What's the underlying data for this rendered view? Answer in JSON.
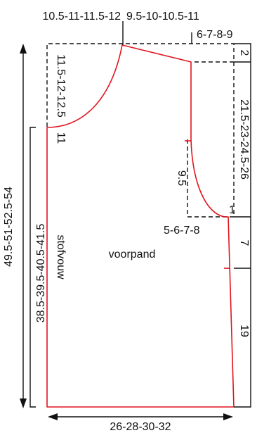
{
  "diagram": {
    "colors": {
      "pattern_line": "#e0141e",
      "guide_line": "#111111"
    },
    "labels": {
      "shoulder_top_left": "10.5-11-11.5-12",
      "shoulder_top_right": "9.5-10-10.5-11",
      "neck_width": "6-7-8-9",
      "shoulder_drop_right": "2",
      "armhole_depth_side": "21.5-23-24.5-26",
      "shoulder_drop_left": "11.5-12-12.5",
      "neck_drop_left": "11",
      "armhole_curve_depth": "9.5",
      "armhole_inset": "5-6-7-8",
      "armhole_corner": "1",
      "side_segment": "7",
      "hem_segment": "19",
      "total_length": "49.5-51-52.5-54",
      "fold_length": "38.5-39.5-40.5-41.5",
      "fold_text": "stofvouw",
      "piece_name": "voorpand",
      "width": "26-28-30-32"
    }
  }
}
